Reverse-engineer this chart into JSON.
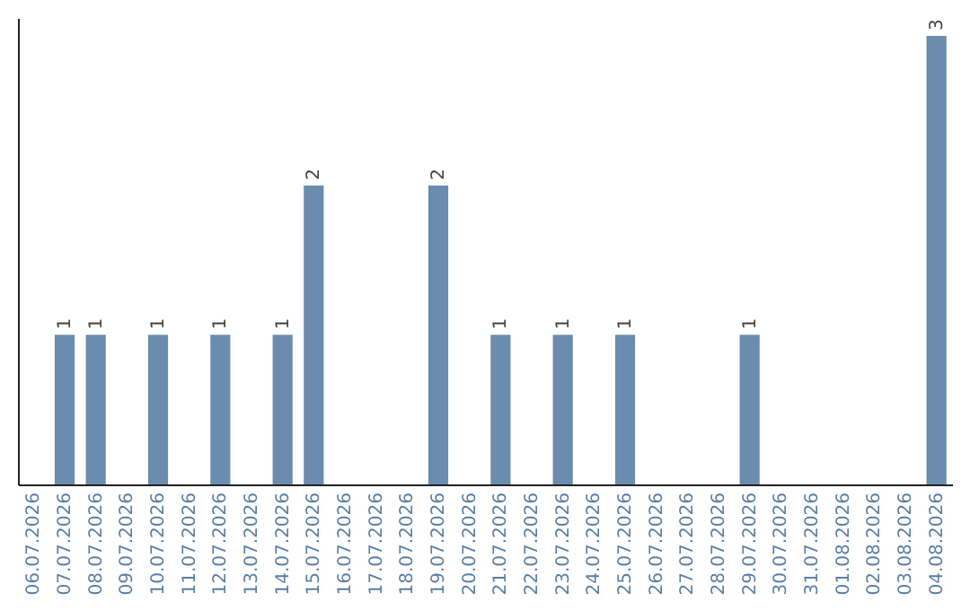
{
  "chart_data": {
    "type": "bar",
    "categories": [
      "06.07.2026",
      "07.07.2026",
      "08.07.2026",
      "09.07.2026",
      "10.07.2026",
      "11.07.2026",
      "12.07.2026",
      "13.07.2026",
      "14.07.2026",
      "15.07.2026",
      "16.07.2026",
      "17.07.2026",
      "18.07.2026",
      "19.07.2026",
      "20.07.2026",
      "21.07.2026",
      "22.07.2026",
      "23.07.2026",
      "24.07.2026",
      "25.07.2026",
      "26.07.2026",
      "27.07.2026",
      "28.07.2026",
      "29.07.2026",
      "30.07.2026",
      "31.07.2026",
      "01.08.2026",
      "02.08.2026",
      "03.08.2026",
      "04.08.2026"
    ],
    "values": [
      0,
      1,
      1,
      0,
      1,
      0,
      1,
      0,
      1,
      2,
      0,
      0,
      0,
      2,
      0,
      1,
      0,
      1,
      0,
      1,
      0,
      0,
      0,
      1,
      0,
      0,
      0,
      0,
      0,
      3
    ],
    "value_labels": [
      null,
      "1",
      "1",
      null,
      "1",
      null,
      "1",
      null,
      "1",
      "2",
      null,
      null,
      null,
      "2",
      null,
      "1",
      null,
      "1",
      null,
      "1",
      null,
      null,
      null,
      "1",
      null,
      null,
      null,
      null,
      null,
      "3"
    ],
    "color": "#6a8cae",
    "ylim": [
      0,
      3.12
    ],
    "tick_labels": "x"
  }
}
